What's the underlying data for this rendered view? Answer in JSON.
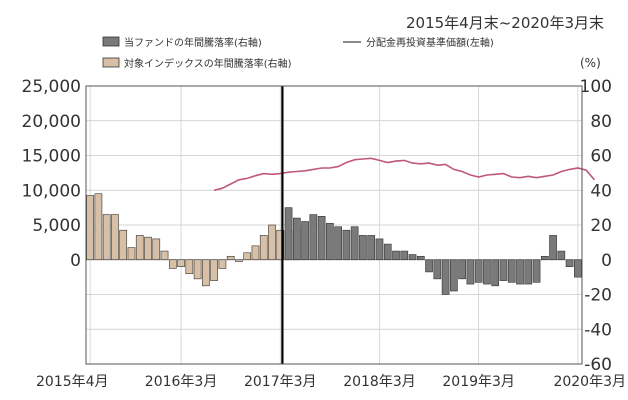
{
  "period": "2015年4月末~2020年3月末",
  "legend": {
    "fund_bar": "当ファンドの年間騰落率(右軸)",
    "index_bar": "対象インデックスの年間騰落率(右軸)",
    "nav_line": "分配金再投資基準価額(左軸)"
  },
  "colors": {
    "fund_bar": "#7a7a7a",
    "index_bar": "#d8c0a6",
    "nav_line": "#c0587c",
    "divider": "#000000"
  },
  "chart_data": {
    "type": "bar",
    "left_axis": {
      "ticks": [
        "25,000",
        "20,000",
        "15,000",
        "10,000",
        "5,000",
        "0"
      ],
      "ylim": [
        -15000,
        25000
      ]
    },
    "right_axis": {
      "unit": "(%)",
      "ticks": [
        "100",
        "80",
        "60",
        "40",
        "20",
        "0",
        "-20",
        "-40",
        "-60"
      ],
      "ylim": [
        -60,
        100
      ]
    },
    "x_tick_labels": [
      "2015年4月",
      "2016年3月",
      "2017年3月",
      "2018年3月",
      "2019年3月",
      "2020年3月"
    ],
    "x_tick_months": [
      0,
      11,
      23,
      35,
      47,
      59
    ],
    "divider_month": 24,
    "index_series": {
      "name": "対象インデックスの年間騰落率(右軸)",
      "start_month": 0,
      "values": [
        37,
        38,
        26,
        26,
        17,
        7,
        14,
        13,
        12,
        5,
        -5,
        -4,
        -8,
        -11,
        -15,
        -12,
        -5,
        2,
        -1,
        4,
        8,
        14,
        20,
        17,
        17,
        18
      ]
    },
    "fund_series": {
      "name": "当ファンドの年間騰落率(右軸)",
      "start_month": 24,
      "values": [
        30,
        24,
        22,
        26,
        25,
        21,
        19,
        17,
        19,
        14,
        14,
        12,
        9,
        5,
        5,
        3,
        2,
        -7,
        -11,
        -20,
        -18,
        -11,
        -14,
        -13,
        -14,
        -15,
        -12,
        -13,
        -14,
        -14,
        -13,
        2,
        14,
        5,
        -4,
        -10
      ]
    },
    "nav_series": {
      "name": "分配金再投資基準価額(左軸)",
      "start_month": 15,
      "values": [
        10000,
        10300,
        10900,
        11500,
        11700,
        12100,
        12400,
        12300,
        12400,
        12600,
        12700,
        12800,
        13000,
        13200,
        13200,
        13400,
        14000,
        14400,
        14500,
        14600,
        14300,
        14000,
        14200,
        14300,
        13900,
        13800,
        13900,
        13600,
        13700,
        13000,
        12700,
        12200,
        11900,
        12200,
        12300,
        12400,
        11900,
        11800,
        12000,
        11800,
        12000,
        12200,
        12700,
        13000,
        13200,
        12900,
        11500
      ]
    }
  }
}
